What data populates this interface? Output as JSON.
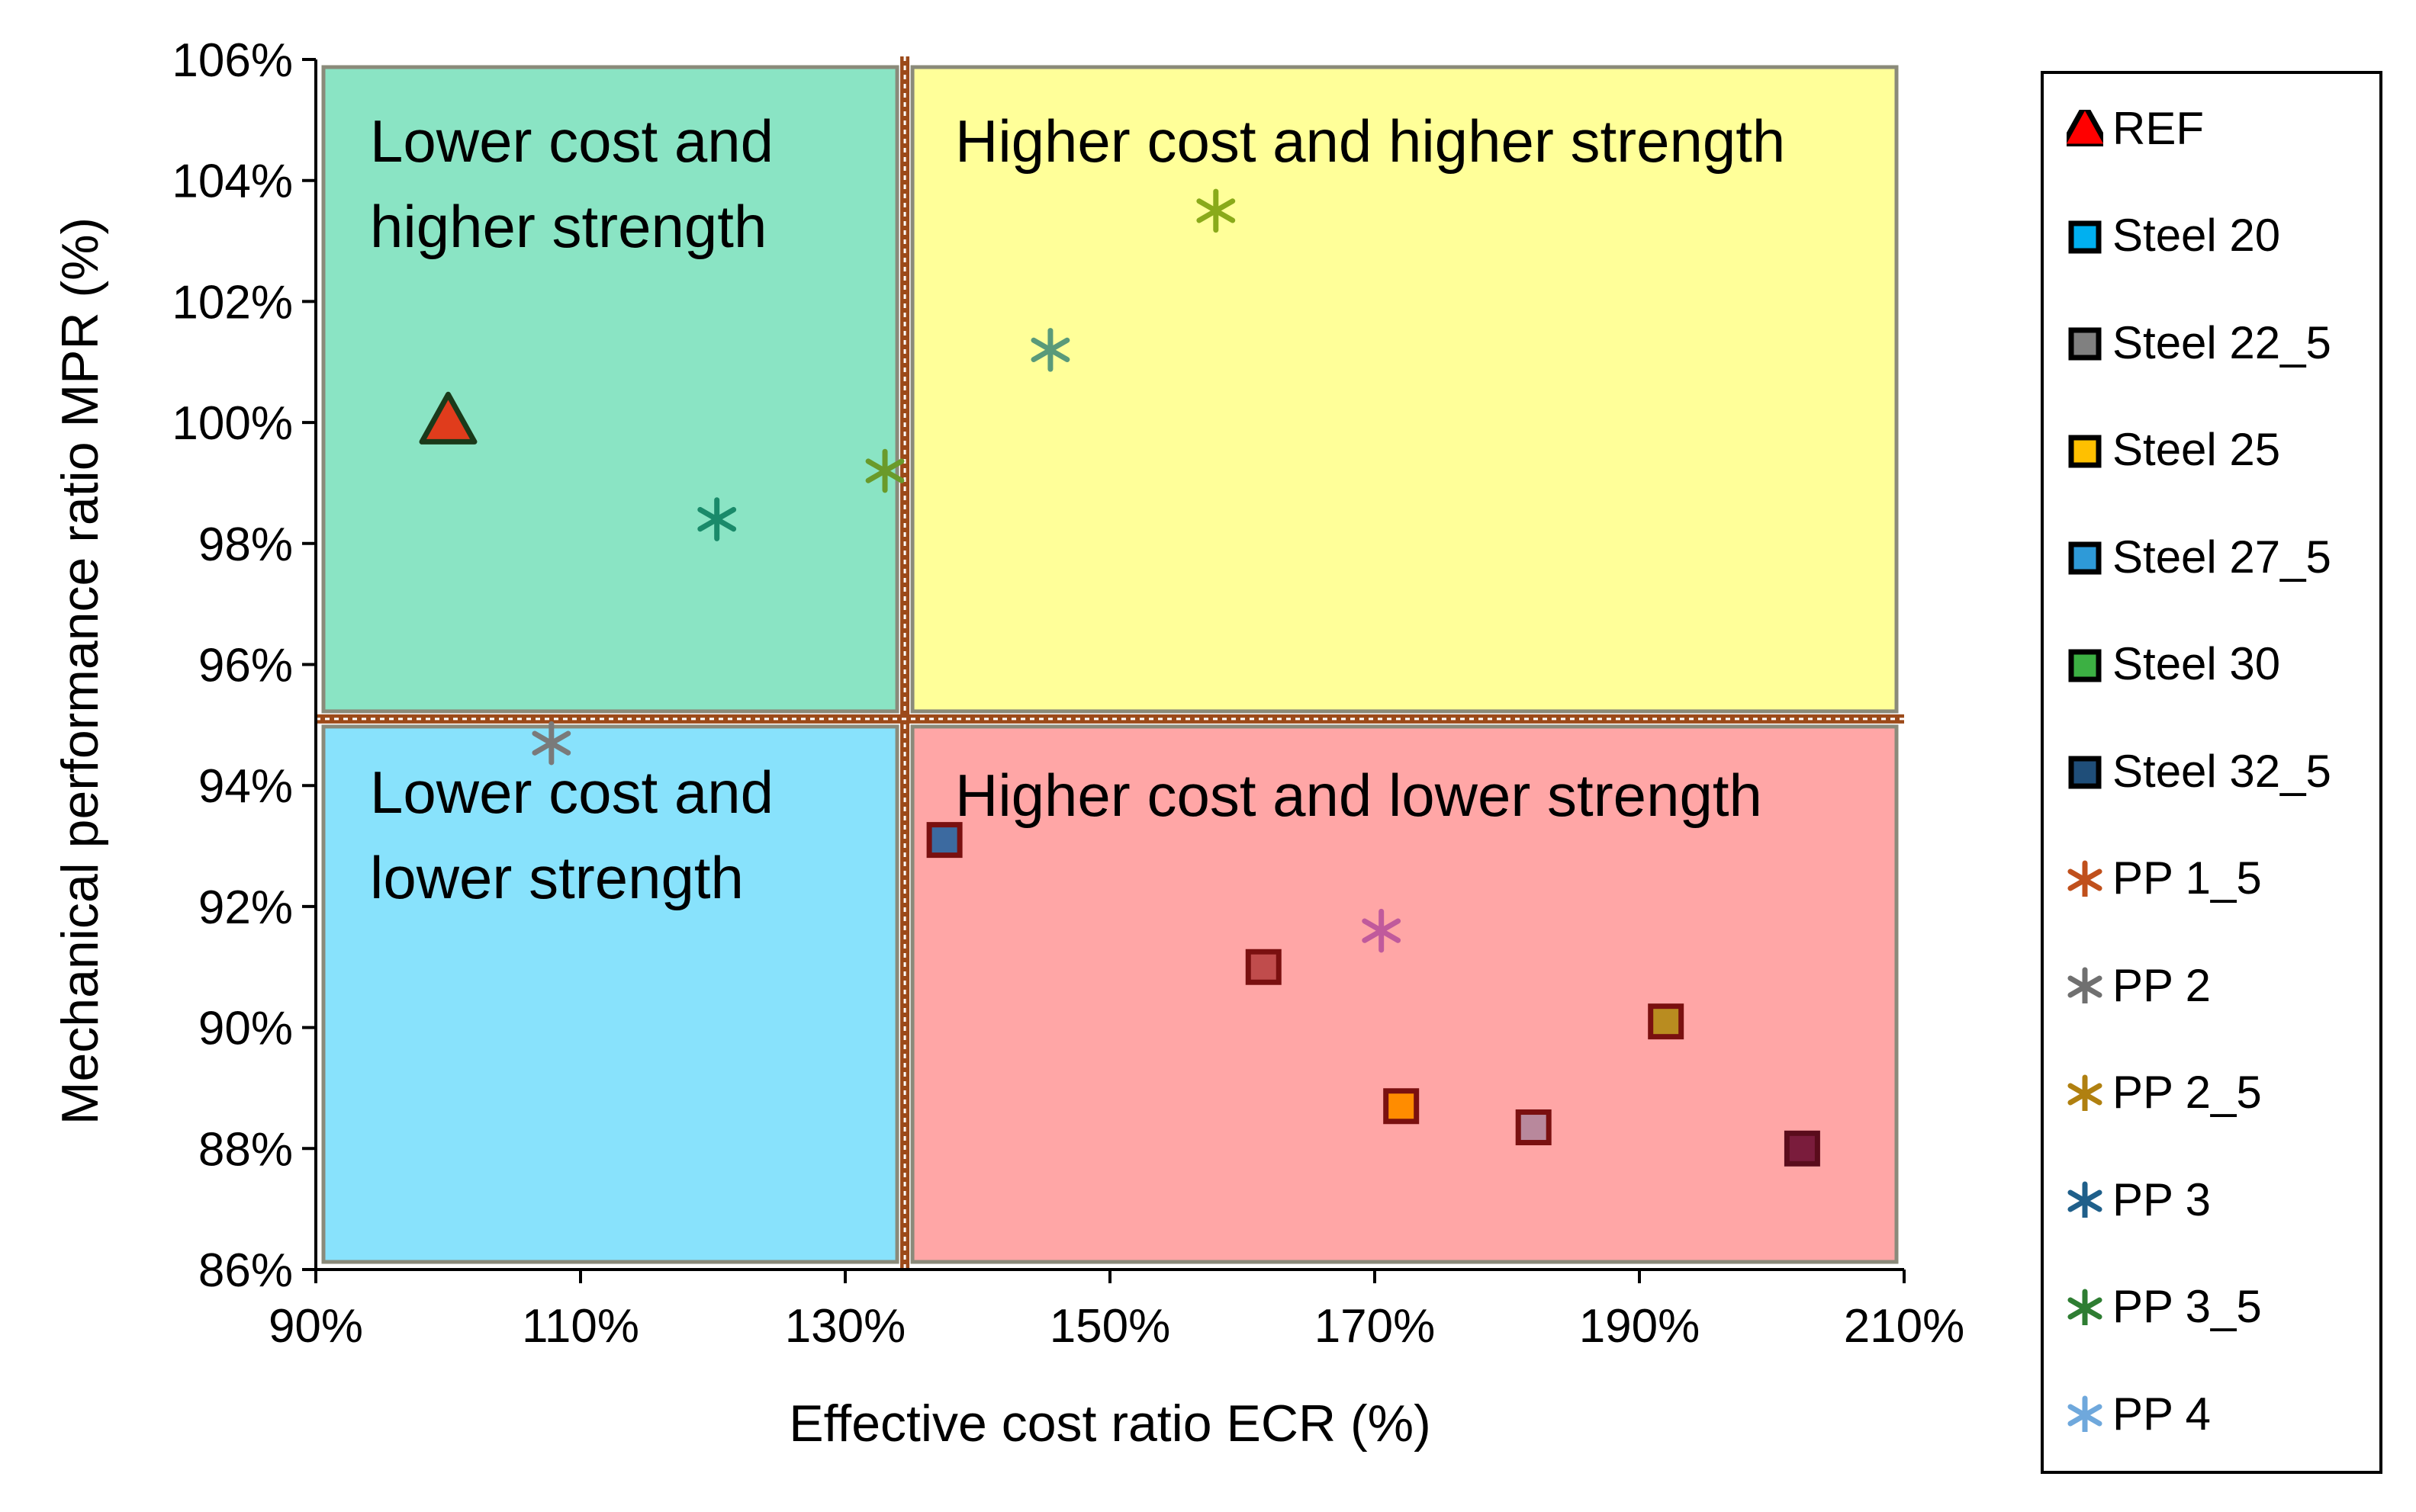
{
  "chart_data": {
    "type": "scatter",
    "xlabel": "Effective cost ratio ECR (%)",
    "ylabel": "Mechanical performance ratio MPR (%)",
    "xlim": [
      90,
      210
    ],
    "ylim": [
      86,
      106
    ],
    "x_ticks": [
      90,
      110,
      130,
      150,
      170,
      190,
      210
    ],
    "y_ticks": [
      86,
      88,
      90,
      92,
      94,
      96,
      98,
      100,
      102,
      104,
      106
    ],
    "x_tick_labels": [
      "90%",
      "110%",
      "130%",
      "150%",
      "170%",
      "190%",
      "210%"
    ],
    "y_tick_labels": [
      "86%",
      "88%",
      "90%",
      "92%",
      "94%",
      "96%",
      "98%",
      "100%",
      "102%",
      "104%",
      "106%"
    ],
    "grid": false,
    "legend_position": "right",
    "divider_x": 134.5,
    "divider_y": 95.1,
    "divider_color": "#9c4a1a",
    "regions": [
      {
        "label_lines": [
          "Lower cost and",
          "higher strength"
        ],
        "x0": 90,
        "x1": 134.5,
        "y0": 95.1,
        "y1": 106,
        "fill": "#8ae4c4"
      },
      {
        "label_lines": [
          "Higher cost and higher strength"
        ],
        "x0": 134.5,
        "x1": 210,
        "y0": 95.1,
        "y1": 106,
        "fill": "#ffff99"
      },
      {
        "label_lines": [
          "Lower cost and",
          "lower strength"
        ],
        "x0": 90,
        "x1": 134.5,
        "y0": 86,
        "y1": 95.1,
        "fill": "#88e2fc"
      },
      {
        "label_lines": [
          "Higher cost and lower strength"
        ],
        "x0": 134.5,
        "x1": 210,
        "y0": 86,
        "y1": 95.1,
        "fill": "#ffa6a6"
      }
    ],
    "series": [
      {
        "name": "REF",
        "marker": "triangle",
        "color": "#e03c1c",
        "stroke": "#1a3a1a",
        "points": [
          [
            100,
            100
          ]
        ]
      },
      {
        "name": "Steel 20",
        "marker": "square",
        "color": "#ff8c00",
        "stroke": "#7a1010",
        "points": [
          [
            172,
            88.7
          ]
        ]
      },
      {
        "name": "Steel 22_5",
        "marker": "square",
        "color": "#b98c20",
        "stroke": "#7a1010",
        "points": [
          [
            192,
            90.1
          ]
        ]
      },
      {
        "name": "Steel 25",
        "marker": "square",
        "color": "#b8889c",
        "stroke": "#7a1010",
        "points": [
          [
            182,
            88.35
          ]
        ]
      },
      {
        "name": "Steel 27_5",
        "marker": "square",
        "color": "#c04c4c",
        "stroke": "#7a1010",
        "points": [
          [
            161.6,
            91.0
          ]
        ]
      },
      {
        "name": "Steel 30",
        "marker": "square",
        "color": "#7a1c3c",
        "stroke": "#5a0c1c",
        "points": [
          [
            202.3,
            88.0
          ]
        ]
      },
      {
        "name": "Steel 32_5",
        "marker": "square",
        "color": "#3c6aa0",
        "stroke": "#7a1010",
        "points": [
          [
            137.5,
            93.1
          ]
        ]
      },
      {
        "name": "PP 1_5",
        "marker": "star",
        "color": "#6a9a2a",
        "points": [
          [
            133,
            99.2
          ]
        ]
      },
      {
        "name": "PP 2",
        "marker": "star",
        "color": "#7a7a7a",
        "points": [
          [
            107.8,
            94.7
          ]
        ]
      },
      {
        "name": "PP 2_5",
        "marker": "star",
        "color": "#8aaa1a",
        "points": [
          [
            158,
            103.5
          ]
        ]
      },
      {
        "name": "PP 3",
        "marker": "star",
        "color": "#1a8a6a",
        "points": [
          [
            120.3,
            98.4
          ]
        ]
      },
      {
        "name": "PP 3_5",
        "marker": "star",
        "color": "#5a9a7a",
        "points": [
          [
            145.5,
            101.2
          ]
        ]
      },
      {
        "name": "PP 4",
        "marker": "star",
        "color": "#c05a9c",
        "points": [
          [
            170.5,
            91.6
          ]
        ]
      }
    ]
  },
  "legend": [
    {
      "label": "REF",
      "marker": "triangle",
      "fill": "#ff0000",
      "stroke": "#000000"
    },
    {
      "label": "Steel 20",
      "marker": "square",
      "fill": "#00b0f0",
      "stroke": "#000000"
    },
    {
      "label": "Steel 22_5",
      "marker": "square",
      "fill": "#808080",
      "stroke": "#000000"
    },
    {
      "label": "Steel 25",
      "marker": "square",
      "fill": "#ffc000",
      "stroke": "#000000"
    },
    {
      "label": "Steel 27_5",
      "marker": "square",
      "fill": "#2e9ad8",
      "stroke": "#000000"
    },
    {
      "label": "Steel 30",
      "marker": "square",
      "fill": "#3cb043",
      "stroke": "#000000"
    },
    {
      "label": "Steel 32_5",
      "marker": "square",
      "fill": "#1f4e79",
      "stroke": "#000000"
    },
    {
      "label": "PP 1_5",
      "marker": "star",
      "fill": "#c0501c"
    },
    {
      "label": "PP 2",
      "marker": "star",
      "fill": "#707070"
    },
    {
      "label": "PP 2_5",
      "marker": "star",
      "fill": "#b08010"
    },
    {
      "label": "PP 3",
      "marker": "star",
      "fill": "#1f5f8a"
    },
    {
      "label": "PP 3_5",
      "marker": "star",
      "fill": "#2e7d32"
    },
    {
      "label": "PP 4",
      "marker": "star",
      "fill": "#6fa8dc"
    }
  ]
}
